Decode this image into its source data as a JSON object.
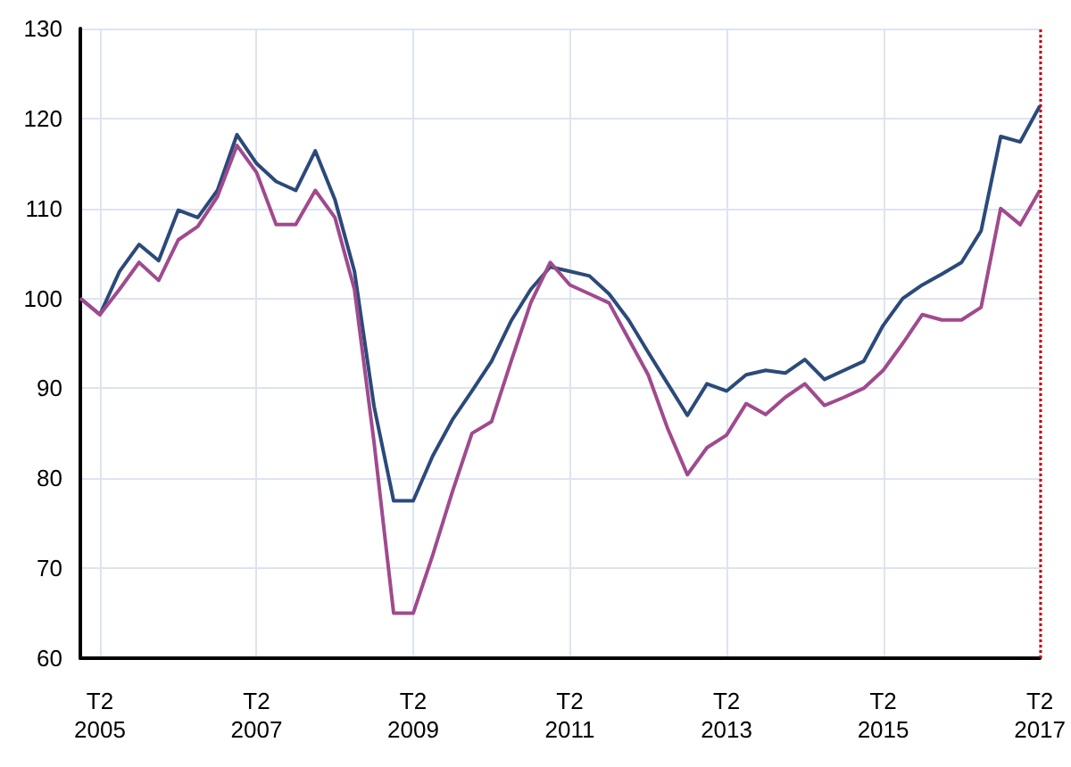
{
  "chart_data": {
    "type": "line",
    "categories": [
      null,
      "T2\n2005",
      null,
      null,
      null,
      null,
      null,
      null,
      null,
      "T2\n2007",
      null,
      null,
      null,
      null,
      null,
      null,
      null,
      "T2\n2009",
      null,
      null,
      null,
      null,
      null,
      null,
      null,
      "T2\n2011",
      null,
      null,
      null,
      null,
      null,
      null,
      null,
      "T2\n2013",
      null,
      null,
      null,
      null,
      null,
      null,
      null,
      "T2\n2015",
      null,
      null,
      null,
      null,
      null,
      null,
      null,
      "T2\n2017"
    ],
    "series": [
      {
        "color": "#2b4a7a",
        "values": [
          100,
          98.2,
          103,
          106,
          104.2,
          109.8,
          109,
          112,
          118.2,
          115,
          113,
          112,
          116.4,
          111,
          103,
          88,
          77.5,
          77.5,
          82.5,
          86.5,
          89.7,
          93,
          97.5,
          101,
          103.5,
          103,
          102.5,
          100.5,
          97.6,
          94,
          90.5,
          87,
          90.5,
          89.7,
          91.5,
          92,
          91.7,
          93.2,
          91,
          92,
          93,
          97,
          100,
          101.5,
          102.7,
          104,
          107.5,
          118,
          117.4,
          121.4
        ]
      },
      {
        "color": "#a04a8e",
        "values": [
          100,
          98.2,
          101,
          104,
          102,
          106.5,
          108,
          111.3,
          117,
          114,
          108.2,
          108.2,
          112,
          109,
          101,
          84,
          65,
          65,
          71.5,
          78.5,
          85,
          86.3,
          93,
          99.5,
          104,
          101.5,
          100.5,
          99.5,
          95.5,
          91.5,
          85.5,
          80.4,
          83.4,
          84.8,
          88.3,
          87.1,
          89,
          90.5,
          88.1,
          89,
          90,
          92,
          95,
          98.2,
          97.6,
          97.6,
          99,
          110,
          108.2,
          112
        ]
      }
    ],
    "ylim": [
      60,
      130
    ],
    "yticks": [
      60,
      70,
      80,
      90,
      100,
      110,
      120,
      130
    ],
    "ref_lines": [
      {
        "axis": "x",
        "value": "T2\n2017",
        "color": "#c00000",
        "line_style": "dotted"
      }
    ],
    "grid": true,
    "marker": "none",
    "line_style": "solid"
  }
}
